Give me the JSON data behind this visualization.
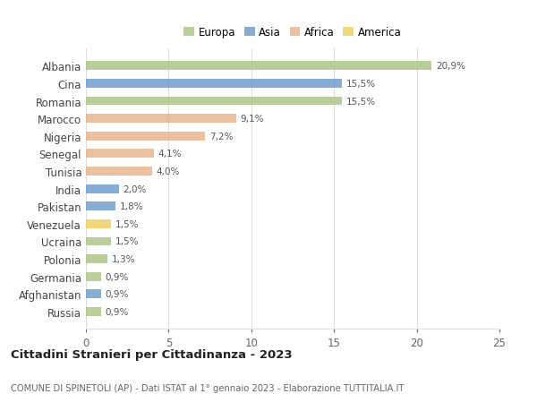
{
  "countries": [
    "Albania",
    "Cina",
    "Romania",
    "Marocco",
    "Nigeria",
    "Senegal",
    "Tunisia",
    "India",
    "Pakistan",
    "Venezuela",
    "Ucraina",
    "Polonia",
    "Germania",
    "Afghanistan",
    "Russia"
  ],
  "values": [
    20.9,
    15.5,
    15.5,
    9.1,
    7.2,
    4.1,
    4.0,
    2.0,
    1.8,
    1.5,
    1.5,
    1.3,
    0.9,
    0.9,
    0.9
  ],
  "labels": [
    "20,9%",
    "15,5%",
    "15,5%",
    "9,1%",
    "7,2%",
    "4,1%",
    "4,0%",
    "2,0%",
    "1,8%",
    "1,5%",
    "1,5%",
    "1,3%",
    "0,9%",
    "0,9%",
    "0,9%"
  ],
  "continents": [
    "Europa",
    "Asia",
    "Europa",
    "Africa",
    "Africa",
    "Africa",
    "Africa",
    "Asia",
    "Asia",
    "America",
    "Europa",
    "Europa",
    "Europa",
    "Asia",
    "Europa"
  ],
  "colors": {
    "Europa": "#aac484",
    "Asia": "#6b9bc8",
    "Africa": "#e8b48a",
    "America": "#f0d060"
  },
  "legend_order": [
    "Europa",
    "Asia",
    "Africa",
    "America"
  ],
  "title": "Cittadini Stranieri per Cittadinanza - 2023",
  "subtitle": "COMUNE DI SPINETOLI (AP) - Dati ISTAT al 1° gennaio 2023 - Elaborazione TUTTITALIA.IT",
  "xlim": [
    0,
    25
  ],
  "xticks": [
    0,
    5,
    10,
    15,
    20,
    25
  ],
  "bg_color": "#ffffff",
  "grid_color": "#dddddd",
  "bar_height": 0.5
}
